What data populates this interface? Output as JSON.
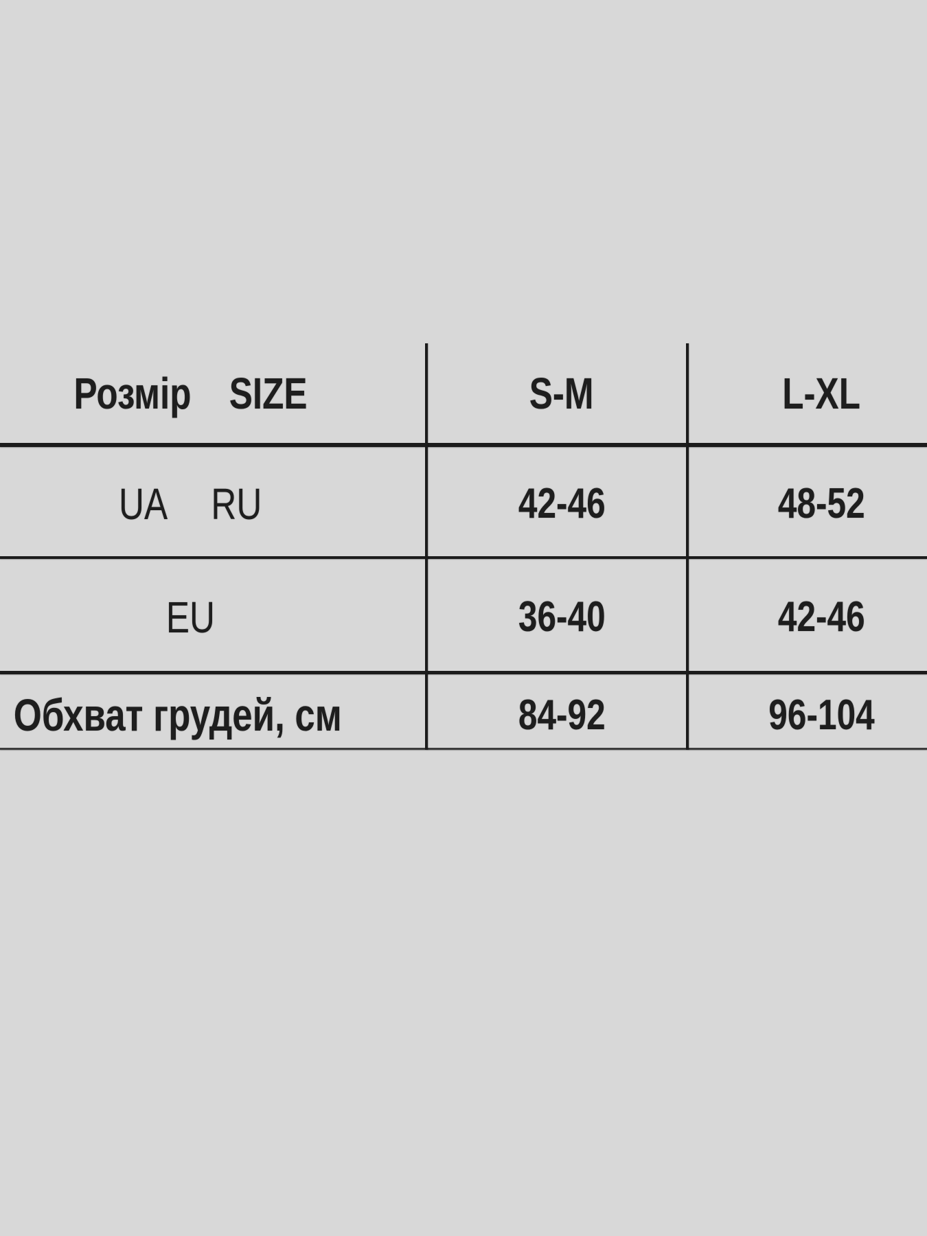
{
  "table": {
    "header": {
      "size_uk": "Розмір",
      "size_en": "SIZE",
      "sm": "S-M",
      "lxl": "L-XL"
    },
    "row_ua_ru": {
      "ua": "UA",
      "ru": "RU",
      "sm": "42-46",
      "lxl": "48-52"
    },
    "row_eu": {
      "label": "EU",
      "sm": "36-40",
      "lxl": "42-46"
    },
    "row_chest": {
      "label": "Обхват грудей, см",
      "sm": "84-92",
      "lxl": "96-104"
    }
  },
  "chart_data": {
    "type": "table",
    "columns": [
      "Розмір SIZE",
      "S-M",
      "L-XL"
    ],
    "rows": [
      [
        "UA RU",
        "42-46",
        "48-52"
      ],
      [
        "EU",
        "36-40",
        "42-46"
      ],
      [
        "Обхват грудей, см",
        "84-92",
        "96-104"
      ]
    ],
    "title": "Розмір SIZE"
  },
  "colors": {
    "background": "#d8d8d8",
    "line": "#1c1c1c",
    "text": "#1e1e1e"
  }
}
